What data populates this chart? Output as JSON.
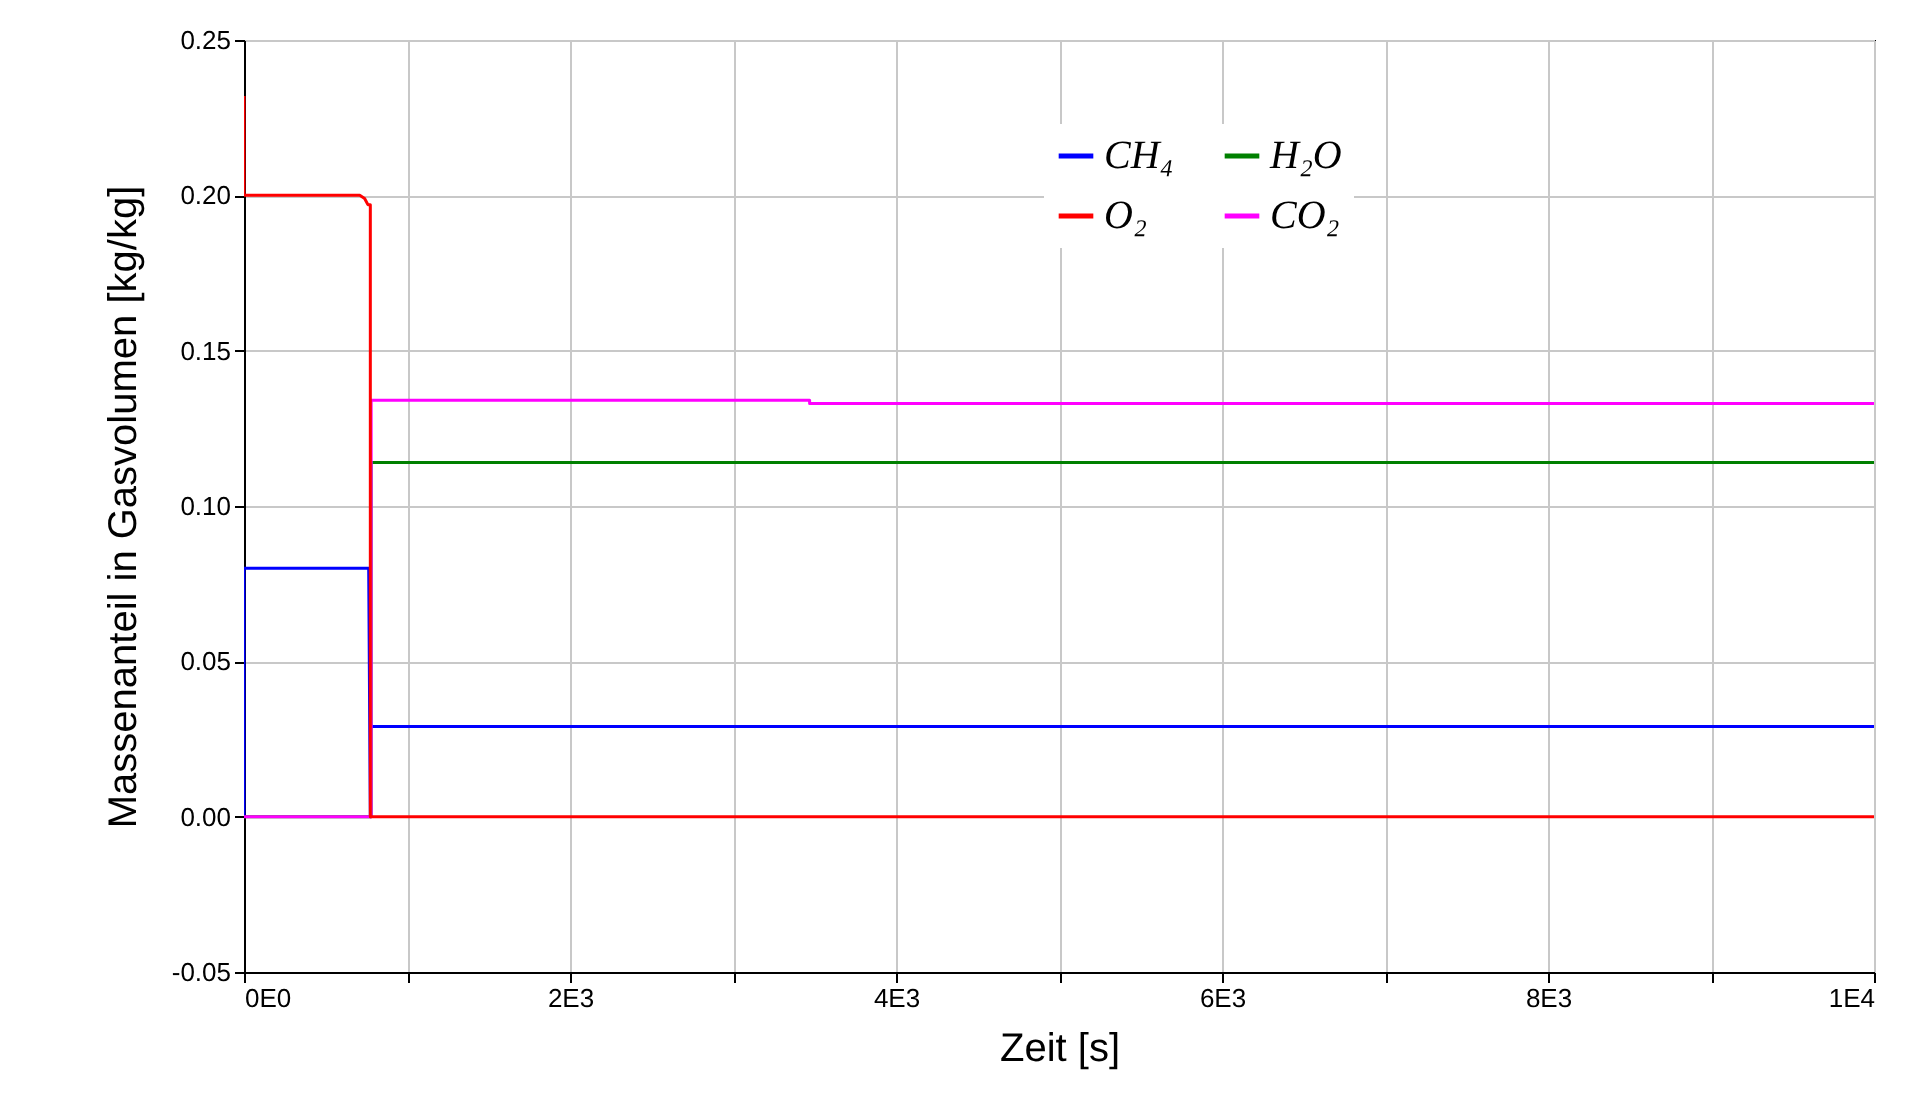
{
  "chart_data": {
    "type": "line",
    "xlabel": "Zeit [s]",
    "ylabel": "Massenanteil in Gasvolumen [kg/kg]",
    "xlim": [
      0,
      10000
    ],
    "ylim": [
      -0.05,
      0.25
    ],
    "xticks": [
      {
        "value": 0,
        "label": "0E0"
      },
      {
        "value": 1000,
        "label": null
      },
      {
        "value": 2000,
        "label": "2E3"
      },
      {
        "value": 3000,
        "label": null
      },
      {
        "value": 4000,
        "label": "4E3"
      },
      {
        "value": 5000,
        "label": null
      },
      {
        "value": 6000,
        "label": "6E3"
      },
      {
        "value": 7000,
        "label": null
      },
      {
        "value": 8000,
        "label": "8E3"
      },
      {
        "value": 9000,
        "label": null
      },
      {
        "value": 10000,
        "label": "1E4"
      }
    ],
    "yticks": [
      -0.05,
      {
        "value": 0,
        "label": "0.00"
      },
      0.05,
      {
        "value": 0.1,
        "label": "0.10"
      },
      0.15,
      {
        "value": 0.2,
        "label": "0.20"
      },
      0.25
    ],
    "grid": true,
    "legend": "top",
    "line_style": "solid",
    "series": [
      {
        "name": "CH₄",
        "color": "#0000ff",
        "x": [
          0,
          0,
          765,
          775,
          775,
          10000
        ],
        "values": [
          0,
          0.08,
          0.08,
          0,
          0.029,
          0.029
        ]
      },
      {
        "name": "O₂",
        "color": "#ff0000",
        "x": [
          0,
          0,
          710,
          740,
          760,
          775,
          775,
          10000
        ],
        "values": [
          0.232,
          0.2,
          0.2,
          0.199,
          0.197,
          0.197,
          0,
          0
        ]
      },
      {
        "name": "H₂O",
        "color": "#008000",
        "x": [
          0,
          780,
          780,
          10000
        ],
        "values": [
          0,
          0,
          0.114,
          0.114
        ]
      },
      {
        "name": "CO₂",
        "color": "#ff00ff",
        "x": [
          0,
          780,
          780,
          3470,
          3470,
          10000
        ],
        "values": [
          0,
          0,
          0.134,
          0.134,
          0.133,
          0.133
        ]
      }
    ]
  }
}
